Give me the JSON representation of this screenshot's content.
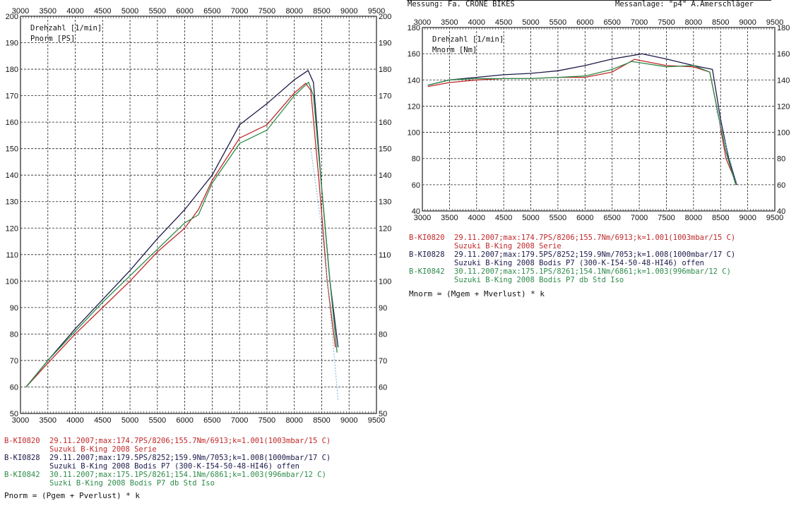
{
  "header_right": {
    "left_text": "Messung: Fa. CRONE BIKES",
    "right_text": "Messanlage: \"p4\" A.Amerschläger"
  },
  "colors": {
    "red": "#c0282a",
    "navy": "#1c1a4a",
    "green": "#2e8b4a",
    "cyan": "#6fb8d8",
    "grid": "#222222"
  },
  "chart_data": [
    {
      "type": "line",
      "id": "power",
      "y_labels": [
        "Drehzahl [1/min]",
        "Pnorm [PS]"
      ],
      "xlim": [
        3000,
        9500
      ],
      "ylim": [
        50,
        200
      ],
      "x_ticks": [
        3000,
        3500,
        4000,
        4500,
        5000,
        5500,
        6000,
        6500,
        7000,
        7500,
        8000,
        8500,
        9000,
        9500
      ],
      "y_ticks": [
        50,
        60,
        70,
        80,
        90,
        100,
        110,
        120,
        130,
        140,
        150,
        160,
        170,
        180,
        190,
        200
      ],
      "grid": true,
      "series": [
        {
          "name": "B-KI0820",
          "color": "red",
          "x": [
            3100,
            3500,
            4000,
            4500,
            5000,
            5500,
            6000,
            6250,
            6500,
            7000,
            7500,
            8000,
            8206,
            8300,
            8450,
            8600,
            8750
          ],
          "y": [
            60,
            69,
            80,
            90,
            100,
            111,
            120,
            127,
            138,
            154,
            159,
            171,
            174.7,
            172,
            138,
            100,
            75
          ]
        },
        {
          "name": "B-KI0828",
          "color": "navy",
          "x": [
            3100,
            3500,
            4000,
            4500,
            5000,
            5500,
            6000,
            6500,
            7000,
            7500,
            8000,
            8252,
            8350,
            8500,
            8650,
            8800
          ],
          "y": [
            60,
            70,
            82,
            93,
            104,
            116,
            127,
            140,
            159,
            167,
            176,
            179.5,
            175,
            135,
            100,
            75
          ]
        },
        {
          "name": "B-KI0842",
          "color": "green",
          "x": [
            3100,
            3500,
            4000,
            4500,
            5000,
            5500,
            6000,
            6250,
            6500,
            7000,
            7500,
            8000,
            8261,
            8350,
            8500,
            8650,
            8780
          ],
          "y": [
            60,
            70,
            81,
            92,
            102,
            112,
            122,
            125,
            137,
            152,
            157,
            170,
            175.1,
            170,
            135,
            100,
            73
          ]
        },
        {
          "name": "",
          "color": "cyan",
          "dashed": true,
          "x": [
            8300,
            8500,
            8650,
            8800
          ],
          "y": [
            150,
            120,
            90,
            55
          ]
        }
      ]
    },
    {
      "type": "line",
      "id": "torque",
      "y_labels": [
        "Drehzahl [1/min]",
        "Mnorm [Nm]"
      ],
      "xlim": [
        3000,
        9500
      ],
      "ylim": [
        40,
        180
      ],
      "x_ticks": [
        3000,
        3500,
        4000,
        4500,
        5000,
        5500,
        6000,
        6500,
        7000,
        7500,
        8000,
        8500,
        9000,
        9500
      ],
      "y_ticks": [
        40,
        60,
        80,
        100,
        120,
        140,
        160,
        180
      ],
      "grid": true,
      "series": [
        {
          "name": "B-KI0820",
          "color": "red",
          "x": [
            3100,
            3500,
            4000,
            4500,
            5000,
            5500,
            6000,
            6500,
            6913,
            7500,
            8000,
            8300,
            8450,
            8600,
            8800
          ],
          "y": [
            135,
            138,
            140,
            141,
            141,
            142,
            142,
            146,
            155.7,
            151,
            150,
            146,
            115,
            80,
            60
          ]
        },
        {
          "name": "B-KI0828",
          "color": "navy",
          "x": [
            3100,
            3500,
            4000,
            4500,
            5000,
            5500,
            6000,
            6500,
            7053,
            7500,
            8000,
            8350,
            8500,
            8650,
            8800
          ],
          "y": [
            136,
            140,
            142,
            144,
            145,
            147,
            151,
            156,
            159.9,
            156,
            151,
            148,
            110,
            80,
            60
          ]
        },
        {
          "name": "B-KI0842",
          "color": "green",
          "x": [
            3100,
            3500,
            4000,
            4500,
            5000,
            5500,
            6000,
            6500,
            6861,
            7500,
            8000,
            8300,
            8450,
            8600,
            8780
          ],
          "y": [
            136,
            140,
            141,
            141,
            141,
            142,
            143,
            148,
            154.1,
            150,
            151,
            146,
            115,
            85,
            60
          ]
        },
        {
          "name": "",
          "color": "cyan",
          "dashed": true,
          "x": [
            8400,
            8600,
            8800
          ],
          "y": [
            120,
            90,
            60
          ]
        }
      ]
    }
  ],
  "legend_left": [
    {
      "code": "B-KI0820",
      "line1": "29.11.2007;max:174.7PS/8206;155.7Nm/6913;k=1.001(1003mbar/15 C)",
      "line2": "Suzuki B-King 2008 Serie",
      "color": "red"
    },
    {
      "code": "B-KI0828",
      "line1": "29.11.2007;max:179.5PS/8252;159.9Nm/7053;k=1.008(1000mbar/17 C)",
      "line2": "Suzuki B-King 2008 Bodis P7 (300-K-I54-50-48-HI46) offen",
      "color": "navy"
    },
    {
      "code": "B-KI0842",
      "line1": "30.11.2007;max:175.1PS/8261;154.1Nm/6861;k=1.003(996mbar/12 C)",
      "line2": "Suzki B-King 2008 Bodis P7 db Std Iso",
      "color": "green"
    }
  ],
  "legend_right": [
    {
      "code": "B-KI0820",
      "line1": "29.11.2007;max:174.7PS/8206;155.7Nm/6913;k=1.001(1003mbar/15 C)",
      "line2": "Suzuki B-King 2008 Serie",
      "color": "red"
    },
    {
      "code": "B-KI0828",
      "line1": "29.11.2007;max:179.5PS/8252;159.9Nm/7053;k=1.008(1000mbar/17 C)",
      "line2": "Suzuki B-King 2008 Bodis P7 (300-K-I54-50-48-HI46) offen",
      "color": "navy"
    },
    {
      "code": "B-KI0842",
      "line1": "30.11.2007;max:175.1PS/8261;154.1Nm/6861;k=1.003(996mbar/12 C)",
      "line2": "Suzuki B-King 2008 Bodis P7 db Std Iso",
      "color": "green"
    }
  ],
  "formula_left": "Pnorm = (Pgem + Pverlust) * k",
  "formula_right": "Mnorm = (Mgem + Mverlust) * k"
}
